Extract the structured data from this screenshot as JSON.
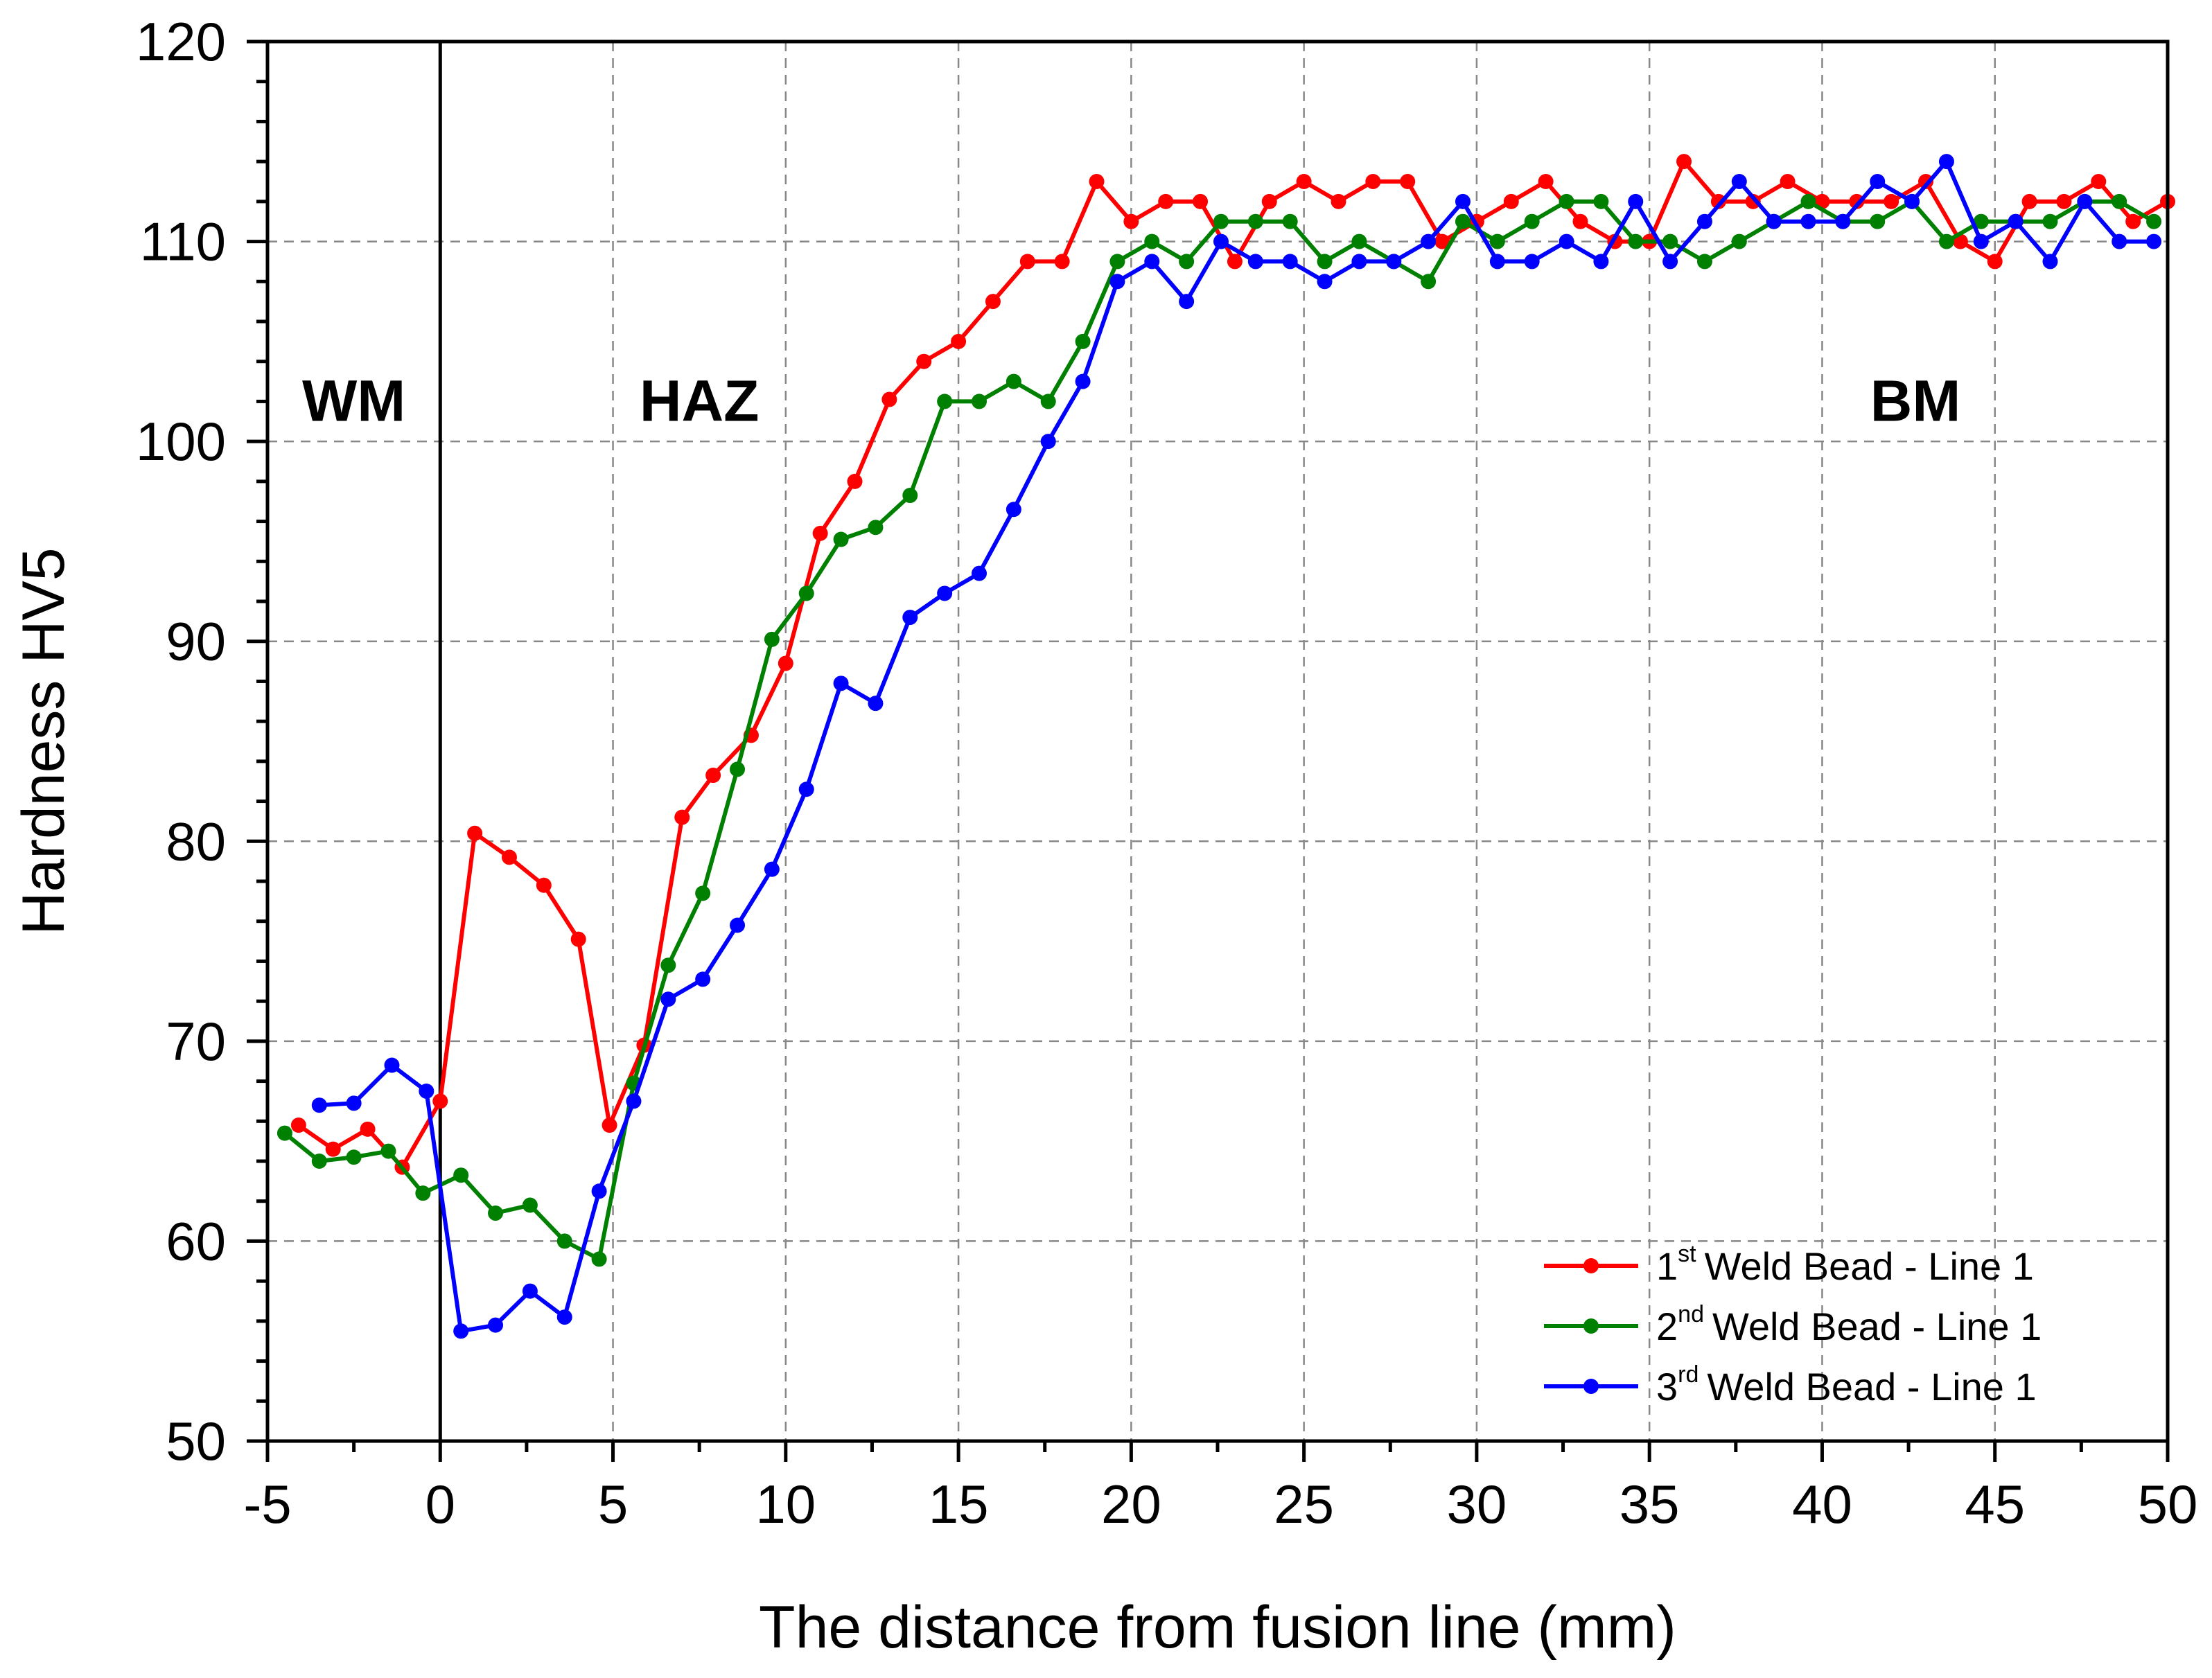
{
  "chart_data": {
    "type": "line",
    "title": "",
    "xlabel": "The distance from fusion line (mm)",
    "ylabel": "Hardness HV5",
    "xlim": [
      -5,
      50
    ],
    "ylim": [
      50,
      120
    ],
    "xticks": [
      -5,
      0,
      5,
      10,
      15,
      20,
      25,
      30,
      35,
      40,
      45,
      50
    ],
    "yticks": [
      50,
      60,
      70,
      80,
      90,
      100,
      110,
      120
    ],
    "grid": true,
    "fusion_line_x": 0,
    "region_labels": [
      {
        "text": "WM",
        "x": -2.5,
        "y": 102
      },
      {
        "text": "HAZ",
        "x": 7.5,
        "y": 102
      },
      {
        "text": "BM",
        "x": 42.7,
        "y": 102
      }
    ],
    "legend": {
      "position": "bottom-right"
    },
    "series": [
      {
        "name": "1st Weld Bead - Line 1",
        "ordinal": "1",
        "sup": "st",
        "label": "Weld Bead - Line 1",
        "color": "#ff0000",
        "x": [
          -4.1,
          -3.1,
          -2.1,
          -1.1,
          0,
          1,
          2,
          3,
          4,
          4.9,
          5.9,
          7,
          7.9,
          9,
          10,
          11,
          12,
          13,
          14,
          15,
          16,
          17,
          18,
          19,
          20,
          21,
          22,
          23,
          24,
          25,
          26,
          27,
          28,
          29,
          30,
          31,
          32,
          33,
          34,
          35,
          36,
          37,
          38,
          39,
          40,
          41,
          42,
          43,
          44,
          45,
          46,
          47,
          48,
          49,
          50
        ],
        "y": [
          65.8,
          64.6,
          65.6,
          63.7,
          67.0,
          80.4,
          79.2,
          77.8,
          75.1,
          65.8,
          69.8,
          81.2,
          83.3,
          85.3,
          88.9,
          95.4,
          98.0,
          102.1,
          104.0,
          105.0,
          107.0,
          109.0,
          109.0,
          113.0,
          111.0,
          112.0,
          112.0,
          109.0,
          112.0,
          113.0,
          112.0,
          113.0,
          113.0,
          110.0,
          111.0,
          112.0,
          113.0,
          111.0,
          110.0,
          110.0,
          114.0,
          112.0,
          112.0,
          113.0,
          112.0,
          112.0,
          112.0,
          113.0,
          110.0,
          109.0,
          112.0,
          112.0,
          113.0,
          111.0,
          112.0
        ]
      },
      {
        "name": "2nd Weld Bead - Line 1",
        "ordinal": "2",
        "sup": "nd",
        "label": "Weld Bead - Line 1",
        "color": "#008000",
        "x": [
          -4.5,
          -3.5,
          -2.5,
          -1.5,
          -0.5,
          0.6,
          1.6,
          2.6,
          3.6,
          4.6,
          5.6,
          6.6,
          7.6,
          8.6,
          9.6,
          10.6,
          11.6,
          12.6,
          13.6,
          14.6,
          15.6,
          16.6,
          17.6,
          18.6,
          19.6,
          20.6,
          21.6,
          22.6,
          23.6,
          24.6,
          25.6,
          26.6,
          27.6,
          28.6,
          29.6,
          30.6,
          31.6,
          32.6,
          33.6,
          34.6,
          35.6,
          36.6,
          37.6,
          38.6,
          39.6,
          40.6,
          41.6,
          42.6,
          43.6,
          44.6,
          45.6,
          46.6,
          47.6,
          48.6,
          49.6
        ],
        "y": [
          65.4,
          64.0,
          64.2,
          64.5,
          62.4,
          63.3,
          61.4,
          61.8,
          60.0,
          59.1,
          67.9,
          73.8,
          77.4,
          83.6,
          90.1,
          92.4,
          95.1,
          95.7,
          97.3,
          102.0,
          102.0,
          103.0,
          102.0,
          105.0,
          109.0,
          110.0,
          109.0,
          111.0,
          111.0,
          111.0,
          109.0,
          110.0,
          109.0,
          108.0,
          111.0,
          110.0,
          111.0,
          112.0,
          112.0,
          110.0,
          110.0,
          109.0,
          110.0,
          111.0,
          112.0,
          111.0,
          111.0,
          112.0,
          110.0,
          111.0,
          111.0,
          111.0,
          112.0,
          112.0,
          111.0
        ]
      },
      {
        "name": "3rd Weld Bead - Line 1",
        "ordinal": "3",
        "sup": "rd",
        "label": "Weld Bead - Line 1",
        "color": "#0000ff",
        "x": [
          -3.5,
          -2.5,
          -1.4,
          -0.4,
          0.6,
          1.6,
          2.6,
          3.6,
          4.6,
          5.6,
          6.6,
          7.6,
          8.6,
          9.6,
          10.6,
          11.6,
          12.6,
          13.6,
          14.6,
          15.6,
          16.6,
          17.6,
          18.6,
          19.6,
          20.6,
          21.6,
          22.6,
          23.6,
          24.6,
          25.6,
          26.6,
          27.6,
          28.6,
          29.6,
          30.6,
          31.6,
          32.6,
          33.6,
          34.6,
          35.6,
          36.6,
          37.6,
          38.6,
          39.6,
          40.6,
          41.6,
          42.6,
          43.6,
          44.6,
          45.6,
          46.6,
          47.6,
          48.6,
          49.6
        ],
        "y": [
          66.8,
          66.9,
          68.8,
          67.5,
          55.5,
          55.8,
          57.5,
          56.2,
          62.5,
          67.0,
          72.1,
          73.1,
          75.8,
          78.6,
          82.6,
          87.9,
          86.9,
          91.2,
          92.4,
          93.4,
          96.6,
          100.0,
          103.0,
          108.0,
          109.0,
          107.0,
          110.0,
          109.0,
          109.0,
          108.0,
          109.0,
          109.0,
          110.0,
          112.0,
          109.0,
          109.0,
          110.0,
          109.0,
          112.0,
          109.0,
          111.0,
          113.0,
          111.0,
          111.0,
          111.0,
          113.0,
          112.0,
          114.0,
          110.0,
          111.0,
          109.0,
          112.0,
          110.0,
          110.0
        ]
      }
    ]
  }
}
